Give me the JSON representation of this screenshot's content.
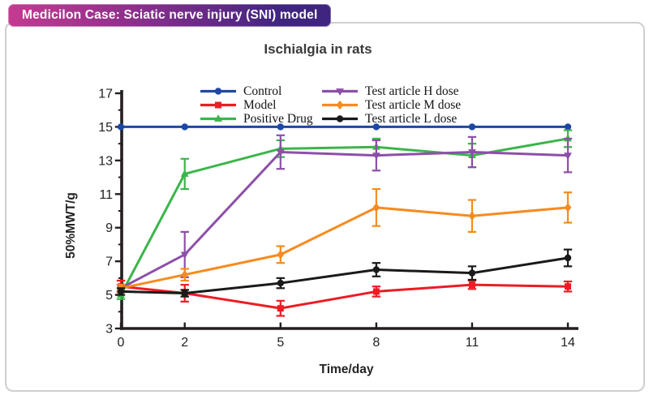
{
  "badge": {
    "label": "Medicilon Case: Sciatic nerve injury (SNI) model",
    "gradient_left": "#c43b90",
    "gradient_right": "#3f2580"
  },
  "chart_data": {
    "type": "line",
    "title": "Ischialgia in rats",
    "xlabel": "Time/day",
    "ylabel": "50%MWT/g",
    "x": [
      0,
      2,
      5,
      8,
      11,
      14
    ],
    "y_ticks": [
      3,
      5,
      7,
      9,
      11,
      13,
      15,
      17
    ],
    "xlim": [
      0,
      14
    ],
    "ylim": [
      3,
      17
    ],
    "grid": false,
    "legend_position": "top-inside-two-columns",
    "axis_color": "#231f20",
    "series": [
      {
        "name": "Control",
        "color": "#1d47a5",
        "marker": "circle",
        "values": [
          15,
          15,
          15,
          15,
          15,
          15
        ],
        "errors": [
          0,
          0,
          0,
          0,
          0,
          0
        ]
      },
      {
        "name": "Model",
        "color": "#ec1c24",
        "marker": "square",
        "values": [
          5.5,
          5.1,
          4.2,
          5.2,
          5.6,
          5.5
        ],
        "errors": [
          0.35,
          0.5,
          0.45,
          0.3,
          0.25,
          0.3
        ]
      },
      {
        "name": "Positive Drug",
        "color": "#3bb54a",
        "marker": "triangle-up",
        "values": [
          5.0,
          12.2,
          13.7,
          13.8,
          13.3,
          14.3
        ],
        "errors": [
          0.25,
          0.9,
          0.5,
          0.5,
          0.7,
          0.5
        ]
      },
      {
        "name": "Test article H dose",
        "color": "#8c4fa8",
        "marker": "triangle-down",
        "values": [
          5.4,
          7.4,
          13.5,
          13.3,
          13.5,
          13.3
        ],
        "errors": [
          0.2,
          1.35,
          1.0,
          0.9,
          0.9,
          1.0
        ]
      },
      {
        "name": "Test article M dose",
        "color": "#f68b1f",
        "marker": "diamond",
        "values": [
          5.4,
          6.2,
          7.4,
          10.2,
          9.7,
          10.2
        ],
        "errors": [
          0.2,
          0.35,
          0.5,
          1.1,
          0.95,
          0.9
        ]
      },
      {
        "name": "Test article L dose",
        "color": "#1a1a1a",
        "marker": "circle",
        "values": [
          5.2,
          5.1,
          5.7,
          6.5,
          6.3,
          7.2
        ],
        "errors": [
          0.2,
          0.2,
          0.3,
          0.4,
          0.4,
          0.5
        ]
      }
    ]
  }
}
